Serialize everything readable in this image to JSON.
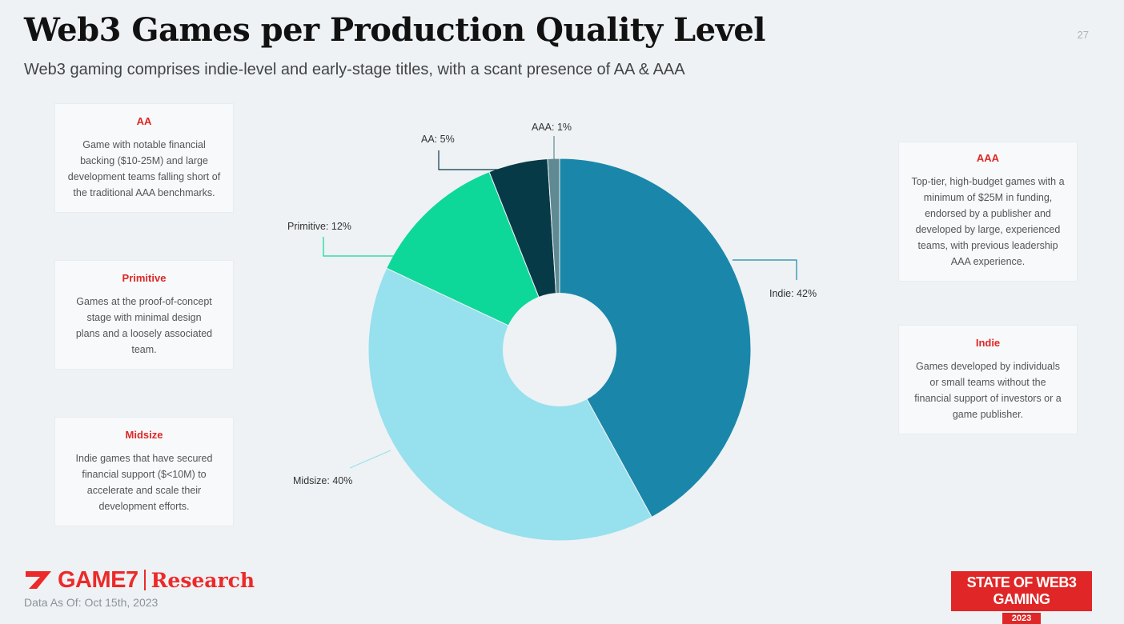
{
  "header": {
    "title": "Web3 Games per Production Quality Level",
    "subtitle": "Web3 gaming comprises indie-level and early-stage titles, with a scant presence of AA & AAA",
    "page_number": "27"
  },
  "definitions": {
    "aa": {
      "title": "AA",
      "description": "Game with notable financial backing ($10-25M) and large development teams falling short of the traditional AAA benchmarks."
    },
    "primitive": {
      "title": "Primitive",
      "description": "Games at the proof-of-concept stage with minimal design plans and a loosely associated team."
    },
    "midsize": {
      "title": "Midsize",
      "description": "Indie games that have secured financial support ($<10M) to accelerate and scale their development efforts."
    },
    "aaa": {
      "title": "AAA",
      "description": "Top-tier, high-budget games with a minimum of $25M in funding, endorsed by a publisher and developed by large, experienced teams, with previous leadership AAA experience."
    },
    "indie": {
      "title": "Indie",
      "description": "Games developed by individuals or small teams without the financial support of investors or a game publisher."
    }
  },
  "chart_data": {
    "type": "pie",
    "donut": true,
    "start_angle_deg": 0,
    "direction": "clockwise",
    "slices": [
      {
        "label": "Indie: 42%",
        "value": 42,
        "color": "#1a87aa"
      },
      {
        "label": "Midsize: 40%",
        "value": 40,
        "color": "#97e0ee"
      },
      {
        "label": "Primitive: 12%",
        "value": 12,
        "color": "#0ed79a"
      },
      {
        "label": "AA: 5%",
        "value": 5,
        "color": "#073a47"
      },
      {
        "label": "AAA: 1%",
        "value": 1,
        "color": "#5f8a93"
      }
    ]
  },
  "footer": {
    "brand_name": "GAME7",
    "brand_suffix": "Research",
    "data_as_of": "Data As Of: Oct 15th, 2023",
    "report_title": "STATE OF WEB3 GAMING",
    "report_year": "2023",
    "brand_color": "#e02626"
  }
}
